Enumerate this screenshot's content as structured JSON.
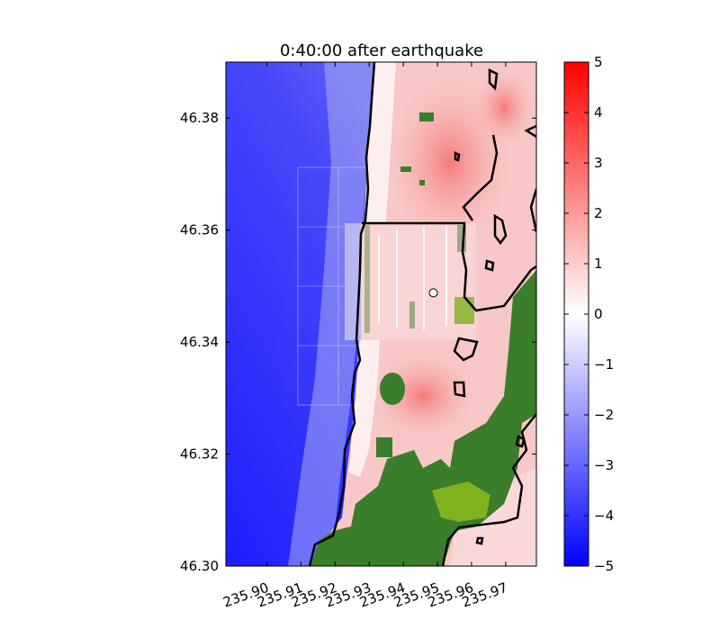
{
  "chart_data": {
    "type": "heatmap",
    "title": "0:40:00 after earthquake",
    "xlabel": "",
    "ylabel": "",
    "xlim": [
      235.888,
      235.979
    ],
    "ylim": [
      46.3,
      46.39
    ],
    "x_ticks": [
      235.9,
      235.91,
      235.92,
      235.93,
      235.94,
      235.95,
      235.96,
      235.97
    ],
    "x_tick_labels": [
      "235.90",
      "235.91",
      "235.92",
      "235.93",
      "235.94",
      "235.95",
      "235.96",
      "235.97"
    ],
    "y_ticks": [
      46.3,
      46.32,
      46.34,
      46.36,
      46.38
    ],
    "y_tick_labels": [
      "46.30",
      "46.32",
      "46.34",
      "46.36",
      "46.38"
    ],
    "colorbar": {
      "min": -5,
      "max": 5,
      "ticks": [
        -5,
        -4,
        -3,
        -2,
        -1,
        0,
        1,
        2,
        3,
        4,
        5
      ],
      "tick_labels": [
        "−5",
        "−4",
        "−3",
        "−2",
        "−1",
        "0",
        "1",
        "2",
        "3",
        "4",
        "5"
      ],
      "colors": {
        "low": "#0000ff",
        "mid": "#ffffff",
        "high": "#ff0000"
      }
    },
    "colors": {
      "land": "#3a7d2a",
      "land_light": "#7fb21f",
      "contour": "#000000"
    },
    "marker": {
      "x": 235.9488,
      "y": 46.3488
    },
    "grid": false
  }
}
